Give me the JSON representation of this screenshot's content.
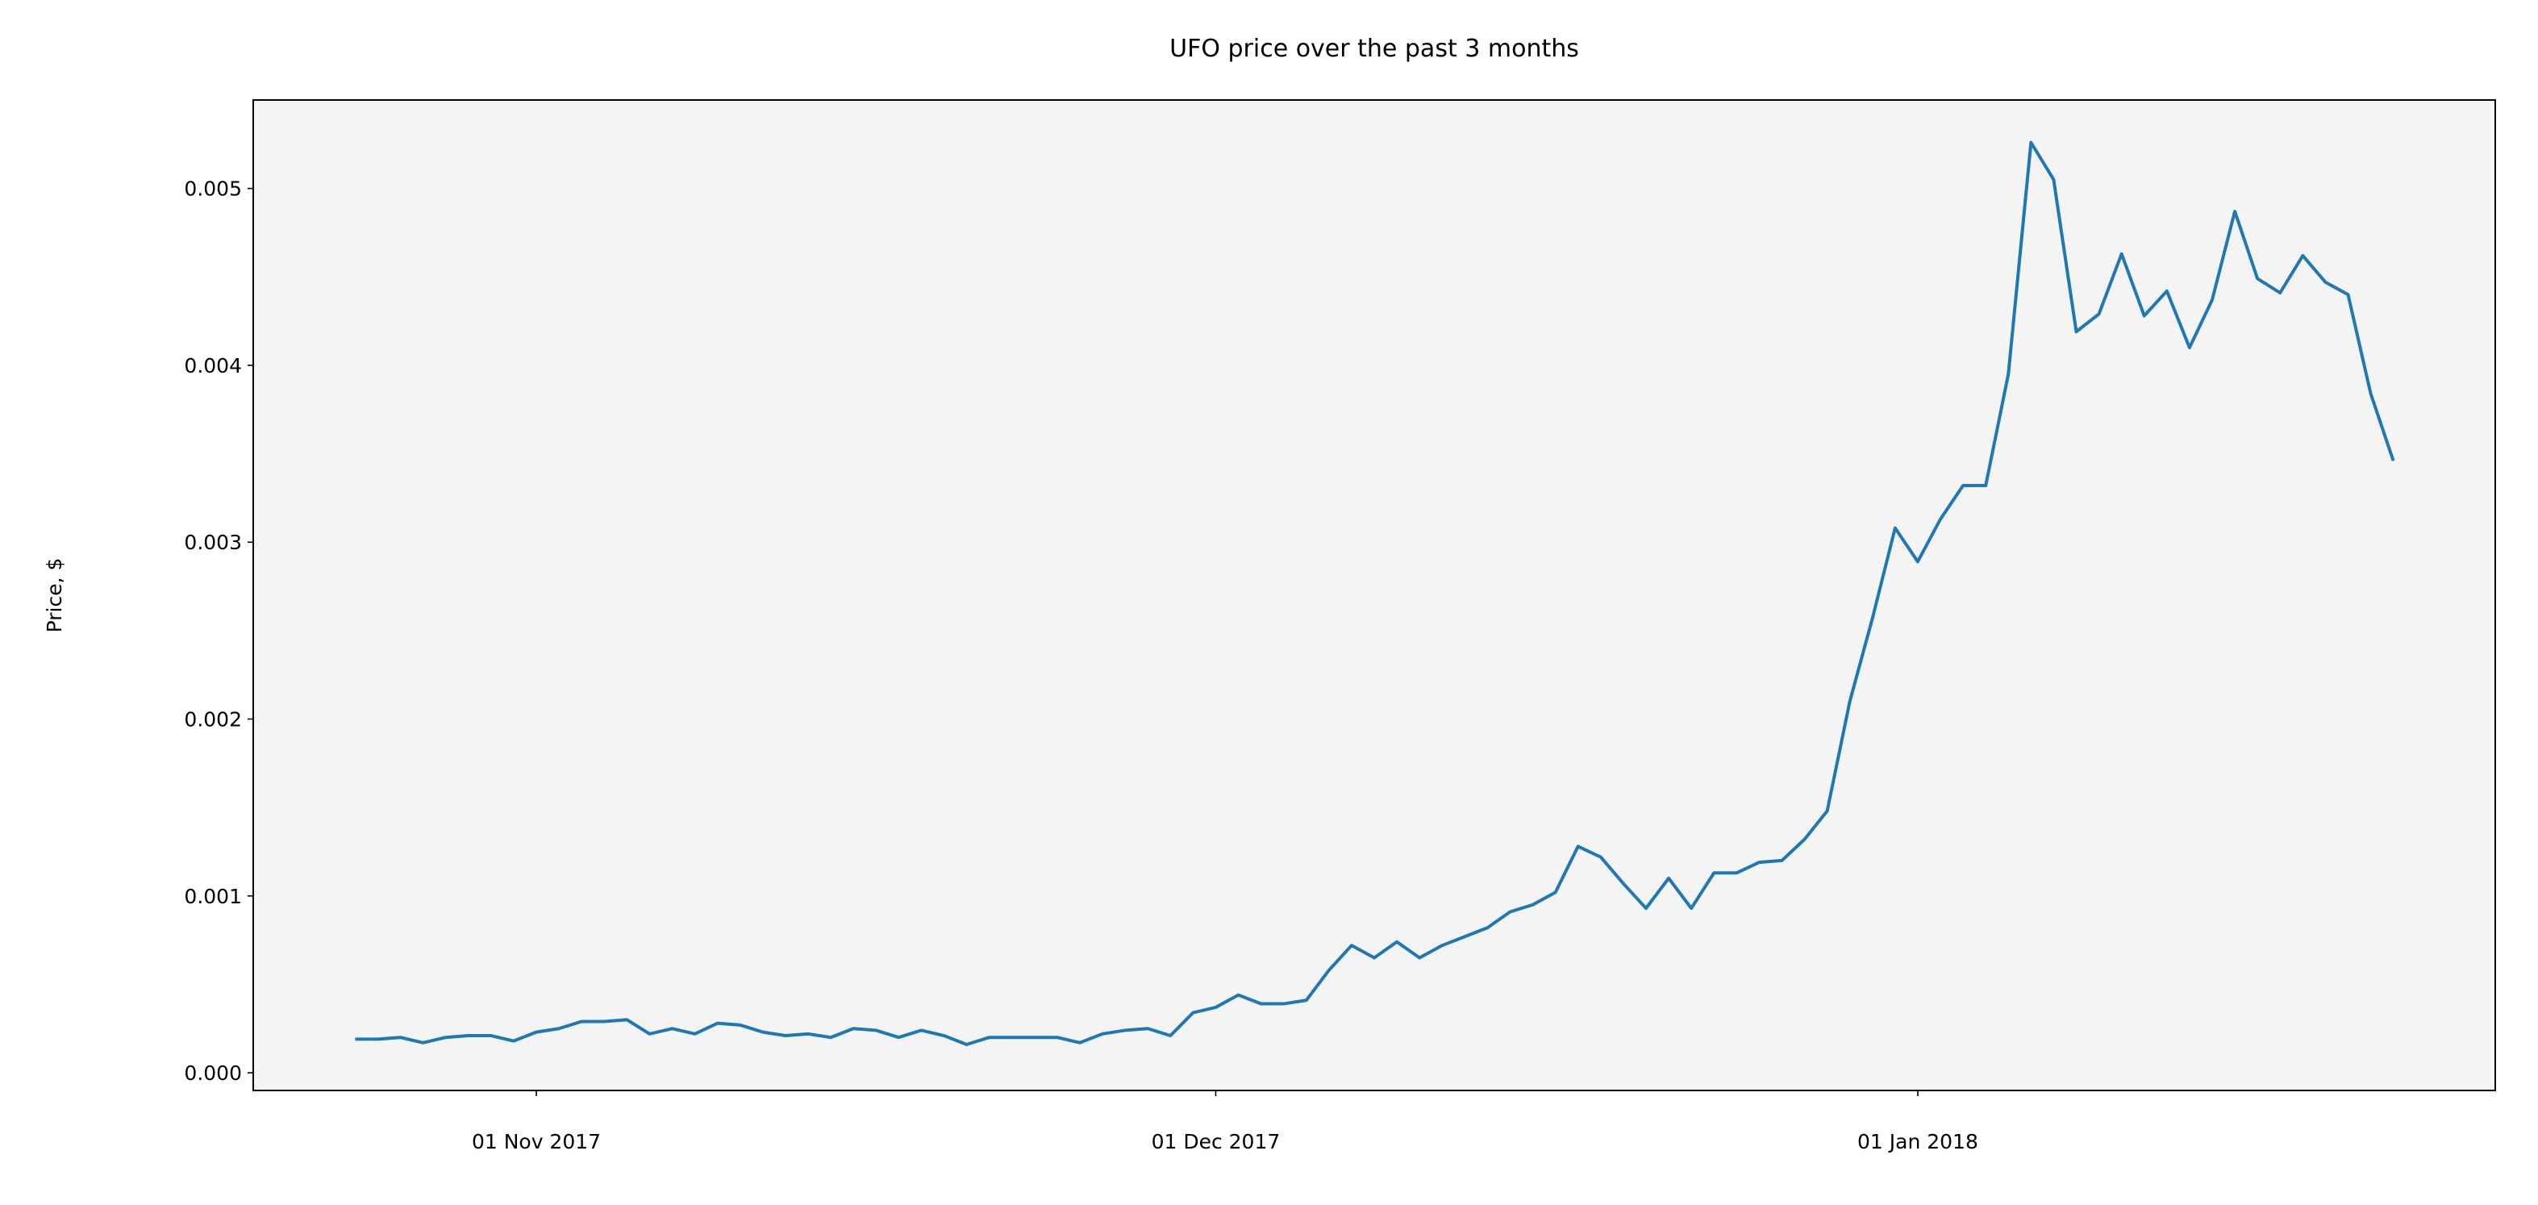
{
  "chart_data": {
    "type": "line",
    "title": "UFO price over the past 3 months",
    "y_label": "Price, $",
    "x": [
      "2017-10-24",
      "2017-10-25",
      "2017-10-26",
      "2017-10-27",
      "2017-10-28",
      "2017-10-29",
      "2017-10-30",
      "2017-10-31",
      "2017-11-01",
      "2017-11-02",
      "2017-11-03",
      "2017-11-04",
      "2017-11-05",
      "2017-11-06",
      "2017-11-07",
      "2017-11-08",
      "2017-11-09",
      "2017-11-10",
      "2017-11-11",
      "2017-11-12",
      "2017-11-13",
      "2017-11-14",
      "2017-11-15",
      "2017-11-16",
      "2017-11-17",
      "2017-11-18",
      "2017-11-19",
      "2017-11-20",
      "2017-11-21",
      "2017-11-22",
      "2017-11-23",
      "2017-11-24",
      "2017-11-25",
      "2017-11-26",
      "2017-11-27",
      "2017-11-28",
      "2017-11-29",
      "2017-11-30",
      "2017-12-01",
      "2017-12-02",
      "2017-12-03",
      "2017-12-04",
      "2017-12-05",
      "2017-12-06",
      "2017-12-07",
      "2017-12-08",
      "2017-12-09",
      "2017-12-10",
      "2017-12-11",
      "2017-12-12",
      "2017-12-13",
      "2017-12-14",
      "2017-12-15",
      "2017-12-16",
      "2017-12-17",
      "2017-12-18",
      "2017-12-19",
      "2017-12-20",
      "2017-12-21",
      "2017-12-22",
      "2017-12-23",
      "2017-12-24",
      "2017-12-25",
      "2017-12-26",
      "2017-12-27",
      "2017-12-28",
      "2017-12-29",
      "2017-12-30",
      "2017-12-31",
      "2018-01-01",
      "2018-01-02",
      "2018-01-03",
      "2018-01-04",
      "2018-01-05",
      "2018-01-06",
      "2018-01-07",
      "2018-01-08",
      "2018-01-09",
      "2018-01-10",
      "2018-01-11",
      "2018-01-12",
      "2018-01-13",
      "2018-01-14",
      "2018-01-15",
      "2018-01-16",
      "2018-01-17",
      "2018-01-18",
      "2018-01-19",
      "2018-01-20",
      "2018-01-21",
      "2018-01-22"
    ],
    "values": [
      0.00019,
      0.00019,
      0.0002,
      0.00017,
      0.0002,
      0.00021,
      0.00021,
      0.00018,
      0.00023,
      0.00025,
      0.00029,
      0.00029,
      0.0003,
      0.00022,
      0.00025,
      0.00022,
      0.00028,
      0.00027,
      0.00023,
      0.00021,
      0.00022,
      0.0002,
      0.00025,
      0.00024,
      0.0002,
      0.00024,
      0.00021,
      0.00016,
      0.0002,
      0.0002,
      0.0002,
      0.0002,
      0.00017,
      0.00022,
      0.00024,
      0.00025,
      0.00021,
      0.00034,
      0.00037,
      0.00044,
      0.00039,
      0.00039,
      0.00041,
      0.00058,
      0.00072,
      0.00065,
      0.00074,
      0.00065,
      0.00072,
      0.00077,
      0.00082,
      0.00091,
      0.00095,
      0.00102,
      0.00128,
      0.00122,
      0.00107,
      0.00093,
      0.0011,
      0.00093,
      0.00113,
      0.00113,
      0.00119,
      0.0012,
      0.00132,
      0.00148,
      0.0021,
      0.00257,
      0.00308,
      0.00289,
      0.00313,
      0.00332,
      0.00332,
      0.00395,
      0.00526,
      0.00505,
      0.00419,
      0.00429,
      0.00463,
      0.00428,
      0.00442,
      0.0041,
      0.00437,
      0.00487,
      0.00449,
      0.00441,
      0.00462,
      0.00447,
      0.0044,
      0.00384,
      0.00346
    ],
    "color": "#1f77b4",
    "background": "#f4f4f4",
    "xlim": [
      "2017-10-19T12:00",
      "2018-01-26T12:00"
    ],
    "xticks": [
      {
        "value": "2017-11-01",
        "label": "01 Nov 2017"
      },
      {
        "value": "2017-12-01",
        "label": "01 Dec 2017"
      },
      {
        "value": "2018-01-01",
        "label": "01 Jan 2018"
      }
    ],
    "ylim": [
      -0.0001,
      0.0055
    ],
    "yticks": [
      {
        "value": 0,
        "label": "0.000"
      },
      {
        "value": 0.001,
        "label": "0.001"
      },
      {
        "value": 0.002,
        "label": "0.002"
      },
      {
        "value": 0.003,
        "label": "0.003"
      },
      {
        "value": 0.004,
        "label": "0.004"
      },
      {
        "value": 0.005,
        "label": "0.005"
      }
    ]
  }
}
